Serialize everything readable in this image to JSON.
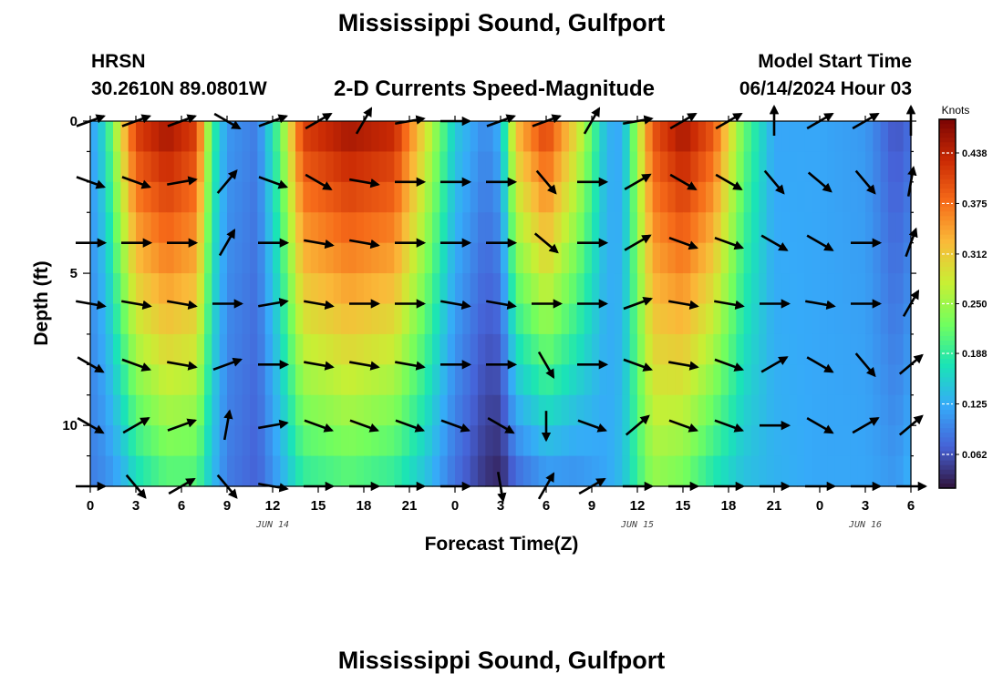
{
  "header": {
    "title": "Mississippi Sound, Gulfport",
    "station": "HRSN",
    "coordinates": "30.2610N  89.0801W",
    "subtitle": "2-D Currents Speed-Magnitude",
    "model_start_label": "Model Start Time",
    "model_start_value": "06/14/2024 Hour 03"
  },
  "footer": {
    "title": "Mississippi Sound, Gulfport"
  },
  "chart_data": {
    "type": "heatmap",
    "xlabel": "Forecast Time(Z)",
    "ylabel": "Depth (ft)",
    "x_ticks": [
      "0",
      "3",
      "6",
      "9",
      "12",
      "15",
      "18",
      "21",
      "0",
      "3",
      "6",
      "9",
      "12",
      "15",
      "18",
      "21",
      "0",
      "3",
      "6"
    ],
    "x_range_hours": [
      0,
      54
    ],
    "date_labels": [
      {
        "label": "JUN 14",
        "hour": 12
      },
      {
        "label": "JUN 15",
        "hour": 36
      },
      {
        "label": "JUN 16",
        "hour": 51
      }
    ],
    "y_ticks": [
      "0",
      "5",
      "10"
    ],
    "ylim": [
      0,
      12
    ],
    "colorbar": {
      "unit": "Knots",
      "ticks": [
        "0.438",
        "0.375",
        "0.312",
        "0.250",
        "0.188",
        "0.125",
        "0.062"
      ],
      "range": [
        0.02,
        0.48
      ],
      "colors": [
        "#30123b",
        "#4662d7",
        "#36aaf9",
        "#1ae4b6",
        "#72fe5e",
        "#c8ef34",
        "#faba39",
        "#f66b19",
        "#ca2a04",
        "#7a0403"
      ]
    },
    "depths_ft": [
      0,
      1,
      2,
      3,
      4,
      5,
      6,
      7,
      8,
      9,
      10,
      11,
      12
    ],
    "speed_profile": [
      {
        "hour": 0,
        "surface": 0.11,
        "bottom": 0.09
      },
      {
        "hour": 1,
        "surface": 0.17,
        "bottom": 0.1
      },
      {
        "hour": 2,
        "surface": 0.3,
        "bottom": 0.12
      },
      {
        "hour": 3,
        "surface": 0.42,
        "bottom": 0.16
      },
      {
        "hour": 5,
        "surface": 0.46,
        "bottom": 0.2
      },
      {
        "hour": 7,
        "surface": 0.42,
        "bottom": 0.2
      },
      {
        "hour": 8,
        "surface": 0.2,
        "bottom": 0.14
      },
      {
        "hour": 9,
        "surface": 0.11,
        "bottom": 0.09
      },
      {
        "hour": 11,
        "surface": 0.09,
        "bottom": 0.07
      },
      {
        "hour": 12.5,
        "surface": 0.22,
        "bottom": 0.12
      },
      {
        "hour": 14,
        "surface": 0.42,
        "bottom": 0.18
      },
      {
        "hour": 17,
        "surface": 0.46,
        "bottom": 0.2
      },
      {
        "hour": 20,
        "surface": 0.44,
        "bottom": 0.18
      },
      {
        "hour": 22,
        "surface": 0.3,
        "bottom": 0.14
      },
      {
        "hour": 24,
        "surface": 0.15,
        "bottom": 0.08
      },
      {
        "hour": 26,
        "surface": 0.1,
        "bottom": 0.04
      },
      {
        "hour": 27,
        "surface": 0.13,
        "bottom": 0.03
      },
      {
        "hour": 28,
        "surface": 0.33,
        "bottom": 0.07
      },
      {
        "hour": 30,
        "surface": 0.42,
        "bottom": 0.1
      },
      {
        "hour": 32,
        "surface": 0.3,
        "bottom": 0.1
      },
      {
        "hour": 34,
        "surface": 0.13,
        "bottom": 0.12
      },
      {
        "hour": 35,
        "surface": 0.12,
        "bottom": 0.14
      },
      {
        "hour": 37,
        "surface": 0.4,
        "bottom": 0.24
      },
      {
        "hour": 39,
        "surface": 0.46,
        "bottom": 0.22
      },
      {
        "hour": 41,
        "surface": 0.4,
        "bottom": 0.17
      },
      {
        "hour": 43,
        "surface": 0.22,
        "bottom": 0.14
      },
      {
        "hour": 45,
        "surface": 0.12,
        "bottom": 0.13
      },
      {
        "hour": 48,
        "surface": 0.12,
        "bottom": 0.12
      },
      {
        "hour": 51,
        "surface": 0.11,
        "bottom": 0.12
      },
      {
        "hour": 53,
        "surface": 0.06,
        "bottom": 0.11
      },
      {
        "hour": 54,
        "surface": 0.08,
        "bottom": 0.13
      }
    ],
    "vector_hours": [
      0,
      3,
      6,
      9,
      12,
      15,
      18,
      21,
      24,
      27,
      30,
      33,
      36,
      39,
      42,
      45,
      48,
      51,
      54
    ],
    "vector_depths_ft": [
      0,
      2,
      4,
      6,
      8,
      10,
      12
    ],
    "vector_angles_deg": [
      [
        20,
        20,
        20,
        -30,
        20,
        30,
        60,
        10,
        0,
        20,
        20,
        60,
        10,
        30,
        30,
        90,
        30,
        30,
        90
      ],
      [
        -20,
        -20,
        10,
        50,
        -20,
        -30,
        -10,
        0,
        0,
        0,
        -50,
        0,
        30,
        -30,
        -30,
        -50,
        -40,
        -50,
        80
      ],
      [
        0,
        0,
        0,
        60,
        0,
        -10,
        -10,
        0,
        0,
        0,
        -40,
        0,
        30,
        -20,
        -20,
        -30,
        -30,
        0,
        70
      ],
      [
        -10,
        -10,
        -10,
        0,
        10,
        -10,
        0,
        0,
        -10,
        -10,
        0,
        0,
        20,
        -10,
        -10,
        0,
        -10,
        0,
        60
      ],
      [
        -30,
        -20,
        -10,
        20,
        0,
        -10,
        -10,
        -10,
        0,
        0,
        -60,
        0,
        -20,
        -10,
        -20,
        30,
        -30,
        -50,
        40
      ],
      [
        -30,
        30,
        20,
        80,
        10,
        -20,
        -20,
        -20,
        -20,
        -30,
        -90,
        -20,
        40,
        -20,
        -20,
        0,
        -30,
        30,
        40
      ],
      [
        0,
        -50,
        30,
        -50,
        -10,
        0,
        0,
        0,
        0,
        -80,
        60,
        30,
        0,
        0,
        0,
        0,
        0,
        0,
        0
      ]
    ]
  }
}
